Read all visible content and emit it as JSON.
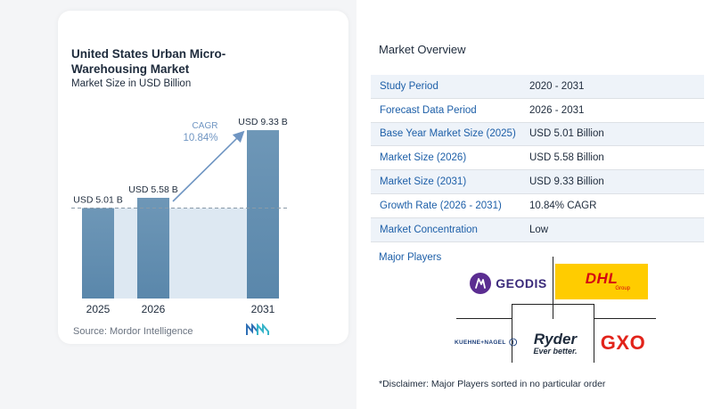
{
  "chart": {
    "title": "United States Urban Micro-Warehousing Market",
    "subtitle": "Market Size in USD Billion",
    "source": "Source:  Mordor Intelligence",
    "cagr_label": "CAGR",
    "cagr_value": "10.84%"
  },
  "chart_data": {
    "type": "bar",
    "title": "United States Urban Micro-Warehousing Market",
    "subtitle": "Market Size in USD Billion",
    "categories": [
      "2025",
      "2026",
      "2031"
    ],
    "values": [
      5.01,
      5.58,
      9.33
    ],
    "data_labels": [
      "USD 5.01 B",
      "USD 5.58 B",
      "USD 9.33 B"
    ],
    "ylim": [
      0,
      10
    ],
    "grid": false,
    "colors": {
      "bar_top": "#6e97b7",
      "bar_bottom": "#5a87ab",
      "shade": "#dde8f2",
      "accent": "#6f95c2"
    }
  },
  "overview": {
    "title": "Market Overview",
    "rows": [
      {
        "label": "Study Period",
        "value": "2020 - 2031"
      },
      {
        "label": "Forecast Data Period",
        "value": "2026 - 2031"
      },
      {
        "label": "Base Year Market Size (2025)",
        "value": "USD 5.01 Billion"
      },
      {
        "label": "Market Size (2026)",
        "value": "USD 5.58 Billion"
      },
      {
        "label": "Market Size (2031)",
        "value": "USD 9.33 Billion"
      },
      {
        "label": "Growth Rate (2026 - 2031)",
        "value": "10.84% CAGR"
      },
      {
        "label": "Market Concentration",
        "value": "Low"
      }
    ]
  },
  "players": {
    "title": "Major Players",
    "geodis": "GEODIS",
    "dhl": "DHL",
    "dhl_sub": "Group",
    "kuehne_nagel": "KUEHNE+NAGEL",
    "ryder": "Ryder",
    "ryder_sub": "Ever better.",
    "gxo": "GXO"
  },
  "disclaimer": "*Disclaimer: Major Players sorted in no particular order"
}
